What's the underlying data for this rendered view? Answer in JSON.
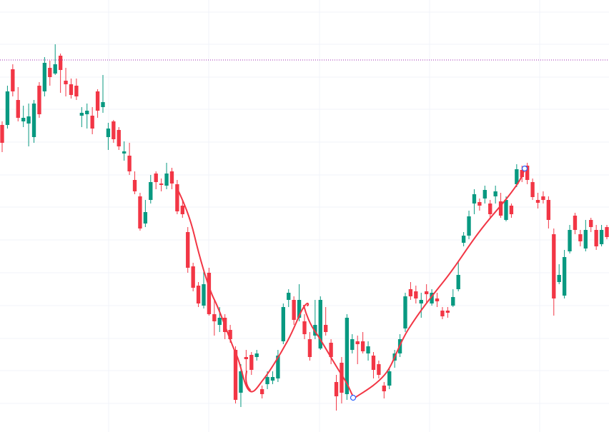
{
  "chart_data": {
    "type": "candlestick",
    "ylim": [
      0,
      605
    ],
    "up_color": "#089981",
    "down_color": "#f23645",
    "price_line": 521,
    "price_line_color": "#9c27b0",
    "open": [
      430,
      430,
      508,
      465,
      435,
      432,
      413,
      485,
      477,
      510,
      502,
      527,
      492,
      487,
      485,
      443,
      445,
      443,
      477,
      455,
      413,
      435,
      423,
      390,
      387,
      353,
      330,
      292,
      325,
      362,
      348,
      345,
      365,
      347,
      317,
      280,
      232,
      205,
      177,
      223,
      165,
      150,
      160,
      143,
      115,
      55,
      105,
      108,
      105,
      60,
      67,
      72,
      75,
      127,
      185,
      185,
      160,
      155,
      130,
      135,
      117,
      150,
      125,
      70,
      97,
      53,
      115,
      127,
      127,
      110,
      107,
      95,
      65,
      65,
      100,
      110,
      145,
      200,
      197,
      180,
      197,
      180,
      187,
      170,
      170,
      177,
      200,
      265,
      275,
      320,
      322,
      327,
      320,
      330,
      323,
      297,
      317,
      347,
      367,
      373,
      350,
      325,
      330,
      325,
      277,
      210,
      191,
      253,
      303,
      277,
      257,
      297,
      283,
      263,
      287
    ],
    "high": [
      435,
      485,
      515,
      483,
      457,
      460,
      465,
      490,
      525,
      520,
      543,
      530,
      510,
      495,
      495,
      455,
      460,
      455,
      480,
      500,
      433,
      437,
      427,
      407,
      405,
      365,
      335,
      325,
      360,
      365,
      355,
      377,
      370,
      353,
      325,
      287,
      237,
      210,
      225,
      230,
      185,
      175,
      165,
      150,
      120,
      95,
      115,
      112,
      115,
      65,
      85,
      85,
      115,
      180,
      200,
      190,
      207,
      165,
      140,
      185,
      190,
      175,
      130,
      80,
      105,
      165,
      137,
      135,
      140,
      127,
      112,
      100,
      70,
      90,
      115,
      137,
      195,
      210,
      205,
      195,
      207,
      200,
      195,
      175,
      175,
      200,
      240,
      280,
      310,
      340,
      327,
      345,
      325,
      345,
      335,
      330,
      320,
      375,
      373,
      377,
      355,
      335,
      337,
      330,
      285,
      235,
      255,
      290,
      307,
      283,
      297,
      300,
      290,
      290,
      290
    ],
    "low": [
      392,
      425,
      470,
      435,
      427,
      400,
      405,
      440,
      470,
      485,
      500,
      475,
      470,
      467,
      465,
      427,
      425,
      417,
      440,
      447,
      395,
      405,
      395,
      380,
      360,
      333,
      282,
      287,
      320,
      340,
      337,
      340,
      340,
      305,
      300,
      223,
      197,
      175,
      173,
      163,
      135,
      140,
      130,
      125,
      40,
      35,
      85,
      80,
      100,
      47,
      60,
      67,
      70,
      123,
      175,
      150,
      155,
      130,
      100,
      130,
      115,
      135,
      95,
      30,
      40,
      45,
      110,
      95,
      110,
      100,
      75,
      75,
      47,
      60,
      90,
      105,
      140,
      185,
      180,
      160,
      180,
      177,
      175,
      158,
      160,
      175,
      197,
      260,
      270,
      305,
      310,
      320,
      300,
      320,
      300,
      295,
      300,
      343,
      350,
      347,
      325,
      313,
      320,
      285,
      163,
      207,
      187,
      250,
      277,
      260,
      253,
      280,
      255,
      260,
      270
    ],
    "close": [
      405,
      477,
      477,
      440,
      440,
      442,
      460,
      445,
      517,
      497,
      515,
      507,
      487,
      472,
      470,
      447,
      450,
      425,
      450,
      462,
      425,
      410,
      400,
      393,
      365,
      337,
      285,
      308,
      350,
      350,
      346,
      362,
      348,
      309,
      305,
      230,
      202,
      180,
      207,
      165,
      155,
      160,
      140,
      130,
      45,
      85,
      102,
      87,
      110,
      53,
      77,
      77,
      107,
      175,
      195,
      157,
      185,
      137,
      105,
      150,
      185,
      140,
      105,
      50,
      55,
      160,
      130,
      123,
      113,
      120,
      87,
      80,
      57,
      85,
      110,
      130,
      190,
      190,
      187,
      185,
      193,
      195,
      183,
      162,
      167,
      189,
      220,
      275,
      302,
      333,
      317,
      339,
      305,
      337,
      303,
      325,
      305,
      368,
      357,
      353,
      329,
      321,
      325,
      297,
      187,
      220,
      245,
      283,
      283,
      267,
      283,
      287,
      260,
      283,
      273
    ]
  }
}
